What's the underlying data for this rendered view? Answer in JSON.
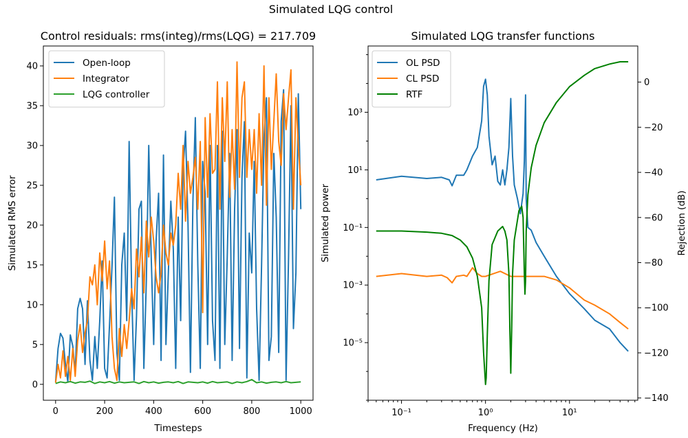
{
  "figure": {
    "suptitle": "Simulated LQG control",
    "colors": {
      "blue": "#1f77b4",
      "orange": "#ff7f0e",
      "green_left": "#2ca02c",
      "green_right": "#008000"
    }
  },
  "chart_data": [
    {
      "type": "line",
      "title": "Control residuals: rms(integ)/rms(LQG) = 217.709",
      "xlabel": "Timesteps",
      "ylabel": "Simulated RMS error",
      "xlim": [
        -50,
        1050
      ],
      "ylim": [
        -2,
        42.5
      ],
      "xticks": [
        0,
        200,
        400,
        600,
        800,
        1000
      ],
      "xtick_labels": [
        "0",
        "200",
        "400",
        "600",
        "800",
        "1000"
      ],
      "yticks": [
        0,
        5,
        10,
        15,
        20,
        25,
        30,
        35,
        40
      ],
      "ytick_labels": [
        "0",
        "5",
        "10",
        "15",
        "20",
        "25",
        "30",
        "35",
        "40"
      ],
      "legend": "top-left",
      "series": [
        {
          "name": "Open-loop",
          "color": "#1f77b4",
          "x": [
            0,
            10,
            20,
            30,
            40,
            50,
            60,
            70,
            80,
            90,
            100,
            110,
            120,
            130,
            140,
            150,
            160,
            170,
            180,
            190,
            200,
            210,
            220,
            230,
            240,
            250,
            260,
            270,
            280,
            290,
            300,
            310,
            320,
            330,
            340,
            350,
            360,
            370,
            380,
            390,
            400,
            410,
            420,
            430,
            440,
            450,
            460,
            470,
            480,
            490,
            500,
            510,
            520,
            530,
            540,
            550,
            560,
            570,
            580,
            590,
            600,
            610,
            620,
            630,
            640,
            650,
            660,
            670,
            680,
            690,
            700,
            710,
            720,
            730,
            740,
            750,
            760,
            770,
            780,
            790,
            800,
            810,
            820,
            830,
            840,
            850,
            860,
            870,
            880,
            890,
            900,
            910,
            920,
            930,
            940,
            950,
            960,
            970,
            980,
            990,
            1000
          ],
          "y": [
            0.3,
            4.5,
            6.4,
            5.8,
            2.5,
            0.3,
            6.2,
            4.8,
            1.5,
            9.5,
            10.8,
            9.5,
            2.5,
            10.5,
            3.0,
            0.5,
            6.0,
            2.0,
            8.0,
            15.5,
            2.0,
            0.8,
            7.5,
            14.8,
            23.5,
            4.0,
            0.5,
            15.0,
            19.0,
            8.0,
            30.5,
            12.0,
            0.5,
            8.5,
            22.0,
            23.0,
            2.0,
            13.0,
            30.0,
            16.0,
            5.0,
            18.0,
            24.0,
            3.0,
            28.8,
            5.0,
            14.0,
            23.0,
            17.0,
            2.0,
            21.0,
            8.0,
            27.0,
            31.8,
            20.0,
            1.5,
            23.0,
            33.5,
            15.0,
            2.0,
            28.0,
            24.0,
            5.0,
            30.0,
            8.0,
            3.0,
            30.0,
            2.0,
            31.8,
            5.0,
            16.0,
            29.0,
            3.0,
            22.0,
            32.0,
            4.5,
            26.0,
            33.0,
            0.8,
            19.0,
            14.0,
            28.0,
            9.5,
            0.5,
            15.0,
            31.0,
            36.0,
            3.0,
            6.0,
            29.0,
            21.0,
            4.0,
            33.0,
            37.0,
            0.5,
            16.0,
            35.0,
            7.0,
            14.0,
            36.5,
            22.0
          ]
        },
        {
          "name": "Integrator",
          "color": "#ff7f0e",
          "x": [
            0,
            10,
            20,
            30,
            40,
            50,
            60,
            70,
            80,
            90,
            100,
            110,
            120,
            130,
            140,
            150,
            160,
            170,
            180,
            190,
            200,
            210,
            220,
            230,
            240,
            250,
            260,
            270,
            280,
            290,
            300,
            310,
            320,
            330,
            340,
            350,
            360,
            370,
            380,
            390,
            400,
            410,
            420,
            430,
            440,
            450,
            460,
            470,
            480,
            490,
            500,
            510,
            520,
            530,
            540,
            550,
            560,
            570,
            580,
            590,
            600,
            610,
            620,
            630,
            640,
            650,
            660,
            670,
            680,
            690,
            700,
            710,
            720,
            730,
            740,
            750,
            760,
            770,
            780,
            790,
            800,
            810,
            820,
            830,
            840,
            850,
            860,
            870,
            880,
            890,
            900,
            910,
            920,
            930,
            940,
            950,
            960,
            970,
            980,
            990,
            1000
          ],
          "y": [
            0.2,
            2.5,
            0.8,
            4.2,
            1.0,
            3.5,
            0.5,
            4.5,
            1.0,
            5.5,
            7.5,
            4.0,
            6.5,
            8.0,
            13.5,
            12.5,
            15.0,
            10.0,
            16.5,
            13.0,
            18.0,
            12.0,
            15.5,
            6.0,
            2.0,
            0.5,
            7.0,
            3.5,
            7.5,
            4.5,
            8.0,
            12.0,
            9.5,
            17.0,
            13.5,
            18.5,
            11.5,
            20.5,
            16.0,
            21.0,
            18.0,
            13.5,
            11.5,
            14.0,
            20.0,
            16.5,
            15.0,
            19.0,
            17.5,
            20.0,
            26.5,
            22.0,
            30.0,
            20.5,
            28.0,
            24.0,
            26.0,
            28.5,
            22.0,
            30.5,
            9.0,
            33.5,
            23.5,
            34.0,
            26.5,
            27.0,
            38.0,
            22.0,
            36.0,
            28.0,
            38.0,
            23.5,
            32.0,
            24.5,
            40.5,
            26.0,
            36.0,
            38.0,
            26.0,
            32.0,
            27.0,
            32.0,
            24.0,
            34.0,
            25.0,
            40.0,
            22.5,
            36.0,
            27.0,
            33.0,
            39.0,
            30.5,
            27.5,
            36.5,
            32.0,
            36.0,
            39.5,
            22.0,
            36.0,
            30.0,
            25.0
          ]
        },
        {
          "name": "LQG controller",
          "color": "#2ca02c",
          "x": [
            0,
            20,
            40,
            60,
            80,
            100,
            120,
            140,
            160,
            180,
            200,
            220,
            240,
            260,
            280,
            300,
            320,
            340,
            360,
            380,
            400,
            420,
            440,
            460,
            480,
            500,
            520,
            540,
            560,
            580,
            600,
            620,
            640,
            660,
            680,
            700,
            720,
            740,
            760,
            780,
            800,
            820,
            840,
            860,
            880,
            900,
            920,
            940,
            960,
            980,
            1000
          ],
          "y": [
            0.1,
            0.3,
            0.2,
            0.35,
            0.15,
            0.3,
            0.25,
            0.4,
            0.1,
            0.3,
            0.2,
            0.35,
            0.15,
            0.3,
            0.2,
            0.25,
            0.3,
            0.1,
            0.35,
            0.2,
            0.3,
            0.15,
            0.25,
            0.3,
            0.2,
            0.35,
            0.1,
            0.3,
            0.25,
            0.2,
            0.3,
            0.15,
            0.35,
            0.2,
            0.25,
            0.3,
            0.1,
            0.3,
            0.2,
            0.35,
            0.6,
            0.2,
            0.3,
            0.15,
            0.25,
            0.3,
            0.2,
            0.35,
            0.2,
            0.25,
            0.3
          ]
        }
      ]
    },
    {
      "type": "line",
      "title": "Simulated LQG transfer functions",
      "xlabel": "Frequency (Hz)",
      "ylabel": "Simulated power",
      "y2label": "Rejection (dB)",
      "xscale": "log",
      "yscale": "log",
      "xlim": [
        0.04,
        65
      ],
      "ylim": [
        1e-07,
        200000.0
      ],
      "y2lim": [
        -141,
        16
      ],
      "xticks": [
        0.1,
        1,
        10
      ],
      "xtick_labels": [
        "10⁻¹",
        "10⁰",
        "10¹"
      ],
      "yticks": [
        1e-05,
        0.001,
        0.1,
        10,
        1000
      ],
      "ytick_labels": [
        "10⁻⁵",
        "10⁻³",
        "10⁻¹",
        "10¹",
        "10³"
      ],
      "y2ticks": [
        0,
        -20,
        -40,
        -60,
        -80,
        -100,
        -120,
        -140
      ],
      "y2tick_labels": [
        "0",
        "−20",
        "−40",
        "−60",
        "−80",
        "−100",
        "−120",
        "−140"
      ],
      "legend": "top-left",
      "series": [
        {
          "name": "OL PSD",
          "color": "#1f77b4",
          "axis": "left",
          "x": [
            0.05,
            0.1,
            0.2,
            0.3,
            0.37,
            0.4,
            0.45,
            0.55,
            0.6,
            0.7,
            0.8,
            0.9,
            0.95,
            1.0,
            1.05,
            1.1,
            1.2,
            1.3,
            1.4,
            1.5,
            1.6,
            1.7,
            1.8,
            1.9,
            2.0,
            2.1,
            2.2,
            2.4,
            2.6,
            2.8,
            2.9,
            3.0,
            3.05,
            3.2,
            3.5,
            4,
            5,
            7,
            10,
            15,
            20,
            30,
            40,
            50
          ],
          "y": [
            4.5,
            6,
            5,
            5.5,
            4.5,
            2.8,
            6.5,
            6.5,
            10,
            30,
            60,
            500,
            8000,
            14000,
            4000,
            150,
            15,
            30,
            4,
            3,
            10,
            3,
            10,
            60,
            3000,
            30,
            3,
            1,
            0.3,
            1.5,
            20,
            4000,
            1,
            0.1,
            0.08,
            0.03,
            0.01,
            0.002,
            0.0005,
            0.00015,
            6e-05,
            3e-05,
            1e-05,
            5e-06
          ]
        },
        {
          "name": "CL PSD",
          "color": "#ff7f0e",
          "axis": "left",
          "x": [
            0.05,
            0.1,
            0.2,
            0.3,
            0.35,
            0.4,
            0.45,
            0.55,
            0.6,
            0.7,
            0.8,
            0.9,
            1.0,
            1.5,
            2.0,
            3.0,
            5,
            7,
            10,
            15,
            20,
            30,
            40,
            50
          ],
          "y": [
            0.002,
            0.0025,
            0.002,
            0.0022,
            0.0018,
            0.0012,
            0.002,
            0.0022,
            0.002,
            0.004,
            0.0025,
            0.002,
            0.002,
            0.003,
            0.002,
            0.002,
            0.002,
            0.0015,
            0.0008,
            0.0003,
            0.0002,
            0.0001,
            5e-05,
            3e-05
          ]
        },
        {
          "name": "RTF",
          "color": "#008000",
          "axis": "right",
          "x": [
            0.05,
            0.1,
            0.2,
            0.3,
            0.4,
            0.5,
            0.6,
            0.7,
            0.8,
            0.9,
            0.95,
            1.0,
            1.02,
            1.05,
            1.1,
            1.2,
            1.4,
            1.6,
            1.7,
            1.8,
            1.9,
            1.95,
            2.0,
            2.05,
            2.1,
            2.2,
            2.5,
            2.7,
            2.8,
            2.9,
            2.95,
            3.0,
            3.05,
            3.2,
            3.5,
            4,
            5,
            7,
            10,
            15,
            20,
            30,
            40,
            50
          ],
          "y": [
            -66,
            -66,
            -66.5,
            -67,
            -68,
            -70,
            -73,
            -78,
            -86,
            -100,
            -120,
            -134,
            -131,
            -112,
            -88,
            -72,
            -66,
            -64,
            -66,
            -70,
            -85,
            -110,
            -129,
            -110,
            -85,
            -70,
            -57,
            -55,
            -60,
            -85,
            -94,
            -88,
            -66,
            -50,
            -38,
            -28,
            -18,
            -9,
            -2,
            3,
            6,
            8,
            9,
            9
          ]
        }
      ]
    }
  ]
}
